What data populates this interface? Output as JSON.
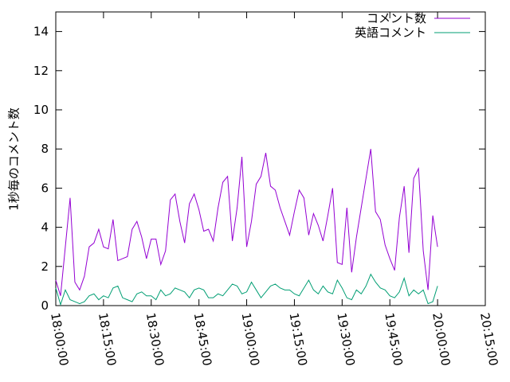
{
  "chart_data": {
    "type": "line",
    "ylabel": "1秒毎のコメント数",
    "x": [
      "18:00:00",
      "18:01:30",
      "18:03:00",
      "18:04:30",
      "18:06:00",
      "18:07:30",
      "18:09:00",
      "18:10:30",
      "18:12:00",
      "18:13:30",
      "18:15:00",
      "18:16:30",
      "18:18:00",
      "18:19:30",
      "18:21:00",
      "18:22:30",
      "18:24:00",
      "18:25:30",
      "18:27:00",
      "18:28:30",
      "18:30:00",
      "18:31:30",
      "18:33:00",
      "18:34:30",
      "18:36:00",
      "18:37:30",
      "18:39:00",
      "18:40:30",
      "18:42:00",
      "18:43:30",
      "18:45:00",
      "18:46:30",
      "18:48:00",
      "18:49:30",
      "18:51:00",
      "18:52:30",
      "18:54:00",
      "18:55:30",
      "18:57:00",
      "18:58:30",
      "19:00:00",
      "19:01:30",
      "19:03:00",
      "19:04:30",
      "19:06:00",
      "19:07:30",
      "19:09:00",
      "19:10:30",
      "19:12:00",
      "19:13:30",
      "19:15:00",
      "19:16:30",
      "19:18:00",
      "19:19:30",
      "19:21:00",
      "19:22:30",
      "19:24:00",
      "19:25:30",
      "19:27:00",
      "19:28:30",
      "19:30:00",
      "19:31:30",
      "19:33:00",
      "19:34:30",
      "19:36:00",
      "19:37:30",
      "19:39:00",
      "19:40:30",
      "19:42:00",
      "19:43:30",
      "19:45:00",
      "19:46:30",
      "19:48:00",
      "19:49:30",
      "19:51:00",
      "19:52:30",
      "19:54:00",
      "19:55:30",
      "19:57:00",
      "19:58:30",
      "20:00:00"
    ],
    "series": [
      {
        "name": "コメント数",
        "color": "#9400d3",
        "values": [
          1.3,
          0.5,
          3,
          5.5,
          1.2,
          0.8,
          1.5,
          3.0,
          3.2,
          3.9,
          3.0,
          2.9,
          4.4,
          2.3,
          2.4,
          2.5,
          3.9,
          4.3,
          3.5,
          2.4,
          3.4,
          3.4,
          2.1,
          2.8,
          5.4,
          5.7,
          4.3,
          3.2,
          5.2,
          5.7,
          4.9,
          3.8,
          3.9,
          3.3,
          5.0,
          6.3,
          6.6,
          3.3,
          5.0,
          7.6,
          3.0,
          4.3,
          6.2,
          6.6,
          7.8,
          6.1,
          5.9,
          5.0,
          4.3,
          3.6,
          4.8,
          5.9,
          5.5,
          3.6,
          4.7,
          4.1,
          3.3,
          4.6,
          6.0,
          2.2,
          2.1,
          5.0,
          1.7,
          3.5,
          5.0,
          6.5,
          8.0,
          4.8,
          4.4,
          3.1,
          2.4,
          1.8,
          4.5,
          6.1,
          2.7,
          6.5,
          7.0,
          2.8,
          0.8,
          4.6,
          3.0
        ]
      },
      {
        "name": "英語コメント",
        "color": "#009e73",
        "values": [
          0.9,
          0.05,
          0.8,
          0.3,
          0.2,
          0.1,
          0.2,
          0.5,
          0.6,
          0.3,
          0.5,
          0.4,
          0.9,
          1.0,
          0.4,
          0.3,
          0.2,
          0.6,
          0.7,
          0.5,
          0.5,
          0.3,
          0.8,
          0.5,
          0.6,
          0.9,
          0.8,
          0.7,
          0.4,
          0.8,
          0.9,
          0.8,
          0.4,
          0.4,
          0.6,
          0.5,
          0.8,
          1.1,
          1.0,
          0.6,
          0.7,
          1.2,
          0.8,
          0.4,
          0.7,
          1.0,
          1.1,
          0.9,
          0.8,
          0.8,
          0.6,
          0.5,
          0.9,
          1.3,
          0.8,
          0.6,
          1.0,
          0.7,
          0.6,
          1.3,
          0.9,
          0.4,
          0.3,
          0.8,
          0.6,
          1.0,
          1.6,
          1.2,
          0.9,
          0.8,
          0.5,
          0.4,
          0.7,
          1.4,
          0.5,
          0.8,
          0.6,
          0.8,
          0.1,
          0.2,
          1.0
        ]
      }
    ],
    "xlim": [
      "18:00:00",
      "20:15:00"
    ],
    "xticks": [
      "18:00:00",
      "18:15:00",
      "18:30:00",
      "18:45:00",
      "19:00:00",
      "19:15:00",
      "19:30:00",
      "19:45:00",
      "20:00:00",
      "20:15:00"
    ],
    "ylim": [
      0,
      15
    ],
    "yticks": [
      0,
      2,
      4,
      6,
      8,
      10,
      12,
      14
    ],
    "legend": "top-right"
  }
}
